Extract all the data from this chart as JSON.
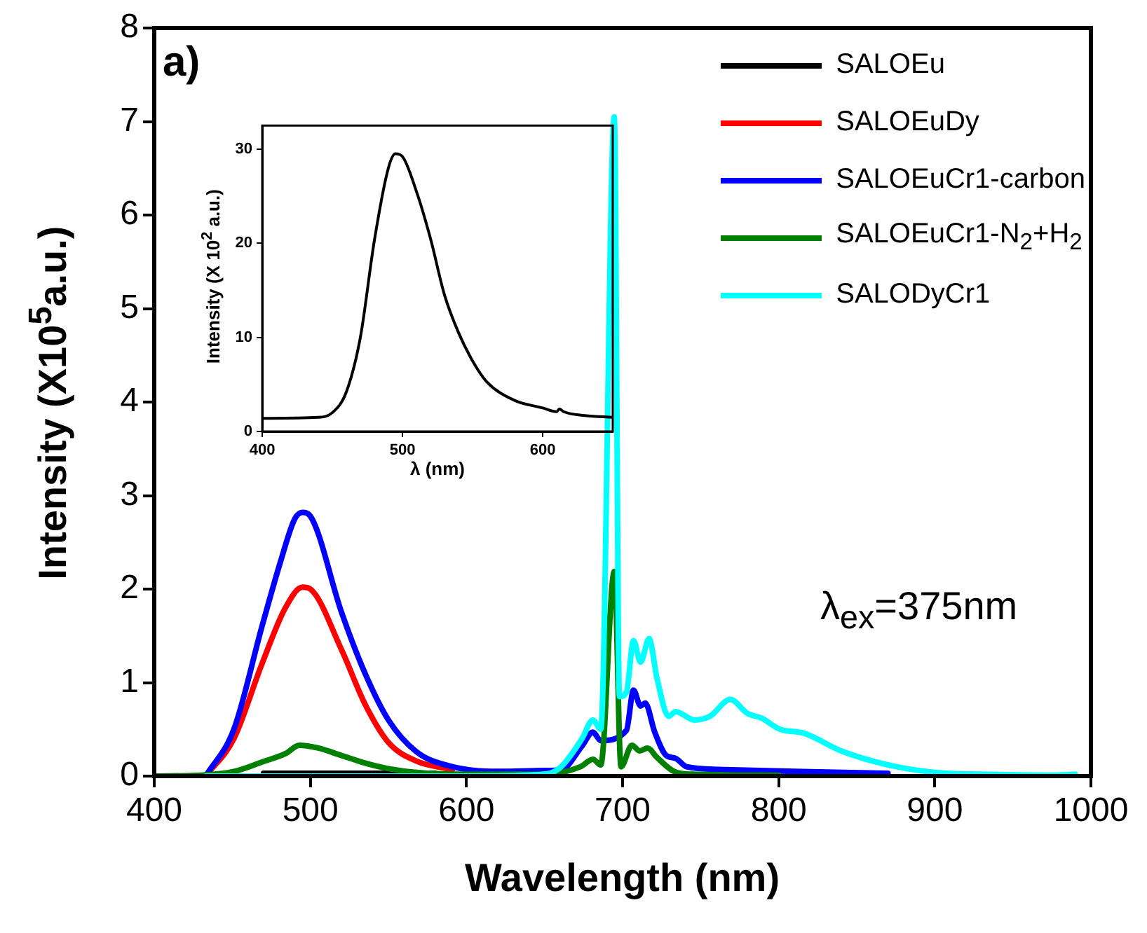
{
  "chart_data": [
    {
      "type": "line",
      "xlabel": "Wavelength (nm)",
      "ylabel": "Intensity (X10$^{5}$a.u.)",
      "annotations": [
        "a)",
        "λ$_{ex}$=375nm"
      ],
      "xlim": [
        400,
        1000
      ],
      "xticks": [
        400,
        500,
        600,
        700,
        800,
        900,
        1000
      ],
      "ylim": [
        0,
        8
      ],
      "yticks": [
        0,
        1,
        2,
        3,
        4,
        5,
        6,
        7,
        8
      ],
      "grid": false,
      "legend": "top right",
      "series": [
        {
          "name": "SALOEu",
          "color": "#000000",
          "x": [
            470,
            495,
            540,
            580
          ],
          "values": [
            0.03,
            0.03,
            0.03,
            0.03
          ]
        },
        {
          "name": "SALOEuDy",
          "color": "#ff0000",
          "x": [
            433,
            451,
            469,
            484,
            495,
            500,
            520,
            535,
            550,
            568,
            591
          ],
          "values": [
            0,
            0.4,
            1.2,
            1.8,
            2.02,
            2.0,
            1.35,
            0.77,
            0.36,
            0.16,
            0.07
          ]
        },
        {
          "name": "SALOEuCr1-carbon",
          "color": "#0000ff",
          "x": [
            433,
            451,
            469,
            481,
            490,
            495,
            500,
            520,
            535,
            550,
            568,
            591,
            620,
            650,
            661,
            674,
            681,
            686,
            694.7,
            702.5,
            707,
            711.5,
            714.5,
            720.6,
            728,
            734,
            741,
            765,
            810,
            870
          ],
          "values": [
            0,
            0.5,
            1.6,
            2.3,
            2.75,
            2.82,
            2.78,
            1.75,
            1.1,
            0.6,
            0.26,
            0.1,
            0.05,
            0.06,
            0.07,
            0.32,
            0.47,
            0.38,
            null,
            0.49,
            0.92,
            0.75,
            0.78,
            0.47,
            0.22,
            0.19,
            0.1,
            0.07,
            0.05,
            0.03
          ]
        },
        {
          "name": "SALOEuCr1-N$_{2}$+H$_{2}$",
          "color": "#008000",
          "x": [
            400,
            430,
            451,
            469,
            484,
            493,
            505,
            520,
            535,
            550,
            568,
            600,
            650,
            673,
            681,
            686,
            694.7,
            699,
            706,
            711,
            716,
            722,
            733,
            745,
            800
          ],
          "values": [
            0,
            0.01,
            0.05,
            0.15,
            0.24,
            0.33,
            0.3,
            0.22,
            0.14,
            0.08,
            0.04,
            0.02,
            0.02,
            0.1,
            0.18,
            0.12,
            2.19,
            0.1,
            0.33,
            0.27,
            0.3,
            0.2,
            0.05,
            0.02,
            0.01
          ]
        },
        {
          "name": "SALODyCr1",
          "color": "#00ffff",
          "x": [
            433,
            500,
            600,
            650,
            660.6,
            674,
            681,
            686,
            694.7,
            698,
            702.5,
            707,
            711.5,
            717,
            722,
            729.5,
            734,
            746,
            756,
            769,
            780,
            789,
            801,
            816,
            840,
            870,
            900,
            930,
            975,
            990
          ],
          "values": [
            0,
            0,
            0,
            0.02,
            0.1,
            0.4,
            0.6,
            0.5,
            7.05,
            0.85,
            0.9,
            1.45,
            1.22,
            1.47,
            1.05,
            0.64,
            0.69,
            0.6,
            0.64,
            0.82,
            0.67,
            0.62,
            0.5,
            0.46,
            0.27,
            0.12,
            0.04,
            0.02,
            0.01,
            0.02
          ]
        }
      ]
    },
    {
      "type": "line",
      "xlabel": "λ (nm)",
      "ylabel": "Intensity (X 10$^{2}$ a.u.)",
      "xlim": [
        400,
        650
      ],
      "xticks": [
        400,
        500,
        600
      ],
      "ylim": [
        0,
        32.5
      ],
      "yticks": [
        0,
        10,
        20,
        30
      ],
      "grid": false,
      "series": [
        {
          "color": "#000000",
          "x": [
            400,
            440,
            450,
            460,
            470,
            480,
            490,
            495,
            500,
            510,
            520,
            530,
            540,
            550,
            560,
            580,
            600,
            610,
            612,
            615,
            630,
            650
          ],
          "values": [
            1.4,
            1.5,
            2.0,
            4.2,
            10,
            20.3,
            28,
            29.5,
            29.2,
            25.5,
            20.5,
            14.5,
            10.5,
            7.5,
            5.3,
            3.3,
            2.5,
            2.1,
            2.4,
            2.1,
            1.7,
            1.5
          ]
        }
      ]
    }
  ]
}
